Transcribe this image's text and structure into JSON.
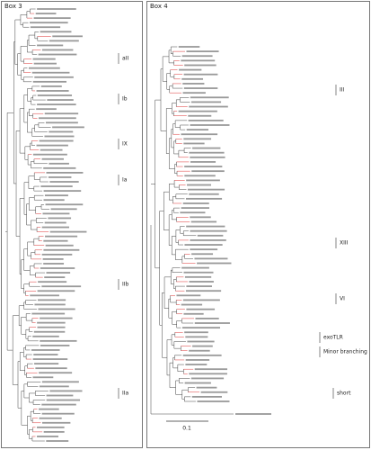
{
  "panels": [
    {
      "title": "Box 3",
      "clades": [
        "aII",
        "Ib",
        "IX",
        "Ia",
        "IIb",
        "IIa"
      ]
    },
    {
      "title": "Box 4",
      "clades": [
        "XIII",
        "III",
        "VI",
        "exoTLR",
        "Minor branching",
        "short"
      ],
      "scale": "0.1"
    }
  ]
}
